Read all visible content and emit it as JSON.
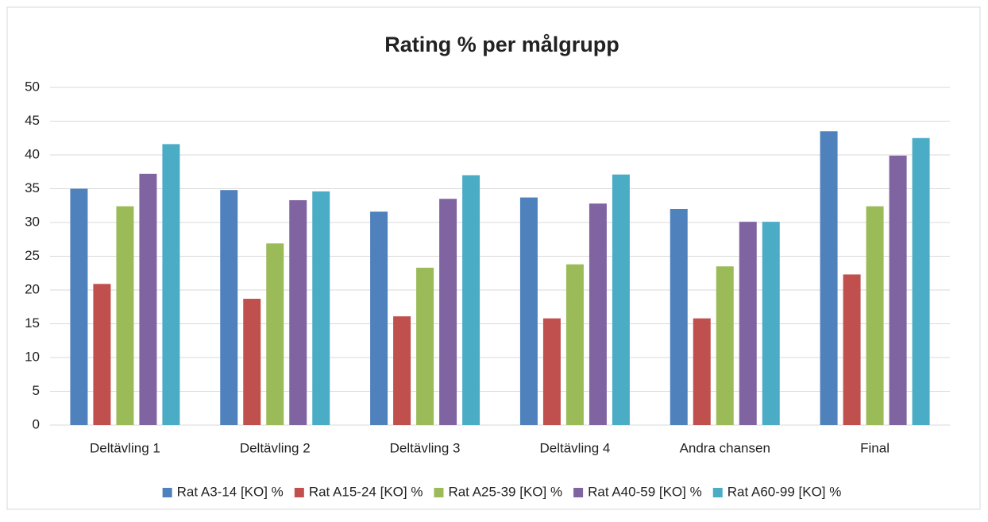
{
  "chart_data": {
    "type": "bar",
    "title": "Rating % per målgrupp",
    "categories": [
      "Deltävling 1",
      "Deltävling 2",
      "Deltävling 3",
      "Deltävling 4",
      "Andra chansen",
      "Final"
    ],
    "series": [
      {
        "name": "Rat A3-14 [KO] %",
        "color": "#4f81bd",
        "values": [
          35.0,
          34.8,
          31.6,
          33.7,
          32.0,
          43.5
        ]
      },
      {
        "name": "Rat A15-24 [KO] %",
        "color": "#c0504d",
        "values": [
          20.9,
          18.7,
          16.1,
          15.8,
          15.8,
          22.3
        ]
      },
      {
        "name": "Rat A25-39 [KO] %",
        "color": "#9bbb59",
        "values": [
          32.4,
          26.9,
          23.3,
          23.8,
          23.5,
          32.4
        ]
      },
      {
        "name": "Rat A40-59 [KO] %",
        "color": "#8064a2",
        "values": [
          37.2,
          33.3,
          33.5,
          32.8,
          30.1,
          39.9
        ]
      },
      {
        "name": "Rat A60-99 [KO] %",
        "color": "#4bacc6",
        "values": [
          41.6,
          34.6,
          37.0,
          37.1,
          30.1,
          42.5
        ]
      }
    ],
    "ylim": [
      0,
      50
    ],
    "yticks": [
      0,
      5,
      10,
      15,
      20,
      25,
      30,
      35,
      40,
      45,
      50
    ],
    "grid": true,
    "legend": "bottom"
  }
}
